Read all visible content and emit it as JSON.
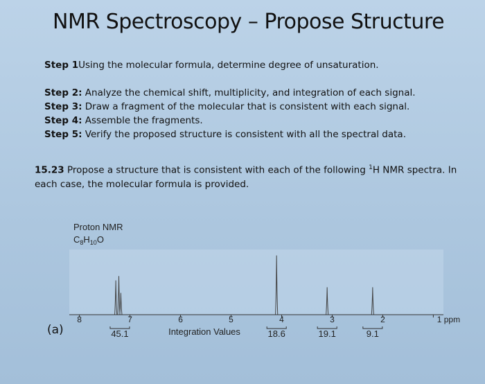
{
  "title": "NMR Spectroscopy – Propose Structure",
  "steps": [
    {
      "label": "Step 1",
      "text": "Using the molecular formula, determine degree of unsaturation."
    },
    {
      "label": "Step 2:",
      "text": " Analyze the chemical shift, multiplicity, and integration of each signal."
    },
    {
      "label": "Step 3:",
      "text": " Draw a fragment of the molecular that is consistent with each signal."
    },
    {
      "label": "Step 4:",
      "text": " Assemble the fragments."
    },
    {
      "label": "Step 5:",
      "text": " Verify the proposed structure is consistent with all the spectral data."
    }
  ],
  "problem": {
    "number": "15.23",
    "text_before": "  Propose a structure that is consistent with each of the following ",
    "superscript": "1",
    "text_after": "H NMR spectra. In each case, the molecular formula is provided."
  },
  "part_label": "(a)",
  "spectrum": {
    "header": "Proton NMR",
    "formula_c": "C",
    "formula_c_sub": "8",
    "formula_h": "H",
    "formula_h_sub": "10",
    "formula_o": "O",
    "ticks": [
      {
        "ppm": 8,
        "label": "8"
      },
      {
        "ppm": 7,
        "label": "7"
      },
      {
        "ppm": 6,
        "label": "6"
      },
      {
        "ppm": 5,
        "label": "5"
      },
      {
        "ppm": 4,
        "label": "4"
      },
      {
        "ppm": 3,
        "label": "3"
      },
      {
        "ppm": 2,
        "label": "2"
      },
      {
        "ppm": 1,
        "label": "1 ppm"
      }
    ],
    "integration_caption": "Integration Values",
    "integrations": [
      {
        "ppm": 7.2,
        "value": "45.1"
      },
      {
        "ppm": 4.1,
        "value": "18.6"
      },
      {
        "ppm": 3.1,
        "value": "19.1"
      },
      {
        "ppm": 2.2,
        "value": "9.1"
      }
    ],
    "peaks": [
      {
        "ppm": 7.28,
        "height": 0.55
      },
      {
        "ppm": 7.22,
        "height": 0.62
      },
      {
        "ppm": 7.18,
        "height": 0.35
      },
      {
        "ppm": 4.1,
        "height": 0.95
      },
      {
        "ppm": 3.1,
        "height": 0.44
      },
      {
        "ppm": 2.2,
        "height": 0.44
      }
    ],
    "ppm_range": [
      8.2,
      0.8
    ]
  }
}
